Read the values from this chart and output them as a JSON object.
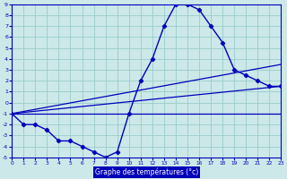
{
  "xlabel": "Graphe des températures (°c)",
  "bg_color": "#cce8e8",
  "line_color": "#0000bb",
  "grid_color": "#99cccc",
  "xlim": [
    0,
    23
  ],
  "ylim": [
    -5,
    9
  ],
  "xticks": [
    0,
    1,
    2,
    3,
    4,
    5,
    6,
    7,
    8,
    9,
    10,
    11,
    12,
    13,
    14,
    15,
    16,
    17,
    18,
    19,
    20,
    21,
    22,
    23
  ],
  "yticks": [
    -5,
    -4,
    -3,
    -2,
    -1,
    0,
    1,
    2,
    3,
    4,
    5,
    6,
    7,
    8,
    9
  ],
  "temp_curve": [
    -1,
    -2,
    -2,
    -2.5,
    -3.5,
    -3.5,
    -4,
    -4.5,
    -5,
    -4.5,
    -1,
    2,
    4,
    7,
    9,
    9,
    8.5,
    7,
    5.5,
    3,
    2.5,
    2,
    1.5,
    1.5
  ],
  "straight_line1_x": [
    0,
    23
  ],
  "straight_line1_y": [
    -1,
    -1
  ],
  "straight_line2_x": [
    0,
    23
  ],
  "straight_line2_y": [
    -1,
    1.5
  ],
  "straight_line3_x": [
    0,
    23
  ],
  "straight_line3_y": [
    -1,
    3.5
  ]
}
